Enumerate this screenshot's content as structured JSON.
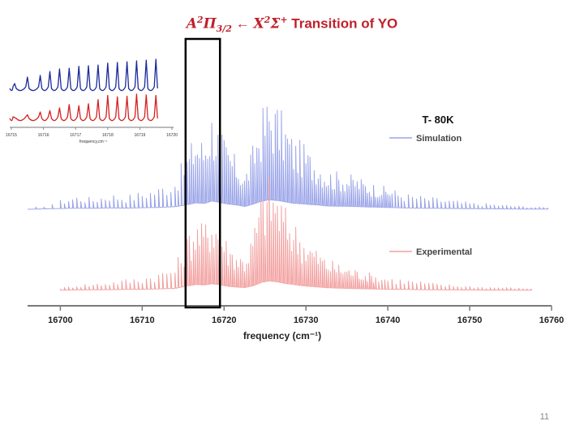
{
  "slide": {
    "title_math_left": "A",
    "title_math_left_sup": "2",
    "title_math_pi": "Π",
    "title_math_pi_sub": "3/2",
    "title_arrow": "←",
    "title_math_right": "X",
    "title_math_right_sup": "2",
    "title_math_sigma": "Σ",
    "title_math_sigma_sup": "+",
    "title_text": "Transition of YO",
    "temperature_label": "T- 80K",
    "page_number": "11"
  },
  "chart_data": [
    {
      "type": "line",
      "title": "",
      "xlabel": "frequency (cm⁻¹)",
      "ylabel": "",
      "xlim": [
        16696,
        16760
      ],
      "xticks": [
        16700,
        16710,
        16720,
        16730,
        16740,
        16750,
        16760
      ],
      "xtick_labels": [
        "16700",
        "16710",
        "16720",
        "16730",
        "16740",
        "16750",
        "16760"
      ],
      "legend": [
        {
          "name": "Simulation",
          "color": "#9aa4e8"
        },
        {
          "name": "Experimental",
          "color": "#f2a0a0"
        }
      ],
      "highlight_region": [
        16715.3,
        16719.5
      ],
      "series": [
        {
          "name": "Simulation",
          "color": "#9aa4e8",
          "x": [
            16696,
            16700,
            16702,
            16704,
            16706,
            16708,
            16710,
            16712,
            16714,
            16715.5,
            16716.5,
            16717.5,
            16718.5,
            16719.5,
            16720.5,
            16721.5,
            16722.5,
            16723.5,
            16724.5,
            16725.5,
            16726.5,
            16727.5,
            16728.5,
            16729.5,
            16730.5,
            16731.5,
            16732.5,
            16733.5,
            16734.5,
            16735.5,
            16736.5,
            16737.5,
            16738.5,
            16739.5,
            16740.5,
            16742,
            16744,
            16746,
            16748,
            16750,
            16752,
            16754,
            16756,
            16758,
            16760
          ],
          "y": [
            0,
            0.08,
            0.12,
            0.1,
            0.14,
            0.12,
            0.16,
            0.2,
            0.28,
            0.5,
            0.68,
            0.62,
            0.88,
            0.7,
            0.55,
            0.45,
            0.3,
            0.55,
            0.85,
            1.0,
            0.92,
            0.78,
            0.62,
            0.58,
            0.5,
            0.45,
            0.35,
            0.33,
            0.32,
            0.3,
            0.28,
            0.24,
            0.22,
            0.2,
            0.18,
            0.14,
            0.12,
            0.1,
            0.08,
            0.06,
            0.05,
            0.04,
            0.03,
            0.02,
            0.02
          ]
        },
        {
          "name": "Experimental",
          "color": "#f2a0a0",
          "x": [
            16700,
            16702,
            16704,
            16706,
            16708,
            16710,
            16712,
            16714,
            16715.5,
            16716.5,
            16717.5,
            16718.5,
            16719.5,
            16720.5,
            16721.5,
            16722.5,
            16723.5,
            16724.5,
            16725.5,
            16726.5,
            16727.5,
            16728.5,
            16729.5,
            16730.5,
            16731.5,
            16732.5,
            16733.5,
            16734.5,
            16735.5,
            16736.5,
            16737.5,
            16738.5,
            16740,
            16742,
            16744,
            16746,
            16748,
            16750,
            16752,
            16754,
            16756,
            16758
          ],
          "y": [
            0.02,
            0.05,
            0.06,
            0.08,
            0.1,
            0.12,
            0.16,
            0.22,
            0.48,
            0.62,
            0.58,
            0.7,
            0.6,
            0.42,
            0.35,
            0.3,
            0.5,
            0.85,
            1.0,
            0.9,
            0.72,
            0.62,
            0.5,
            0.42,
            0.35,
            0.28,
            0.25,
            0.22,
            0.2,
            0.18,
            0.16,
            0.14,
            0.12,
            0.1,
            0.08,
            0.06,
            0.05,
            0.04,
            0.03,
            0.03,
            0.02,
            0.02
          ]
        }
      ]
    },
    {
      "type": "line",
      "title": "",
      "xlabel": "frequency,cm⁻¹",
      "ylabel": "",
      "xlim": [
        16715,
        16720
      ],
      "xticks": [
        16715,
        16716,
        16717,
        16718,
        16719,
        16720
      ],
      "xtick_labels": [
        "16715",
        "16716",
        "16717",
        "16718",
        "16719",
        "16720"
      ],
      "series": [
        {
          "name": "",
          "color": "#1a2a9a",
          "x": [
            16715.1,
            16715.5,
            16715.9,
            16716.2,
            16716.5,
            16716.8,
            16717.1,
            16717.4,
            16717.7,
            16718.0,
            16718.3,
            16718.6,
            16718.9,
            16719.2,
            16719.5
          ],
          "y": [
            0.25,
            0.45,
            0.5,
            0.62,
            0.7,
            0.72,
            0.78,
            0.8,
            0.82,
            0.88,
            0.9,
            0.92,
            0.95,
            0.97,
            1.0
          ]
        },
        {
          "name": "",
          "color": "#d42020",
          "x": [
            16715.1,
            16715.5,
            16715.9,
            16716.2,
            16716.5,
            16716.8,
            16717.1,
            16717.4,
            16717.7,
            16718.0,
            16718.3,
            16718.6,
            16718.9,
            16719.2,
            16719.5
          ],
          "y": [
            0.15,
            0.25,
            0.35,
            0.4,
            0.5,
            0.62,
            0.58,
            0.65,
            0.8,
            0.95,
            0.9,
            0.92,
            1.0,
            0.97,
            0.95
          ]
        }
      ]
    }
  ]
}
